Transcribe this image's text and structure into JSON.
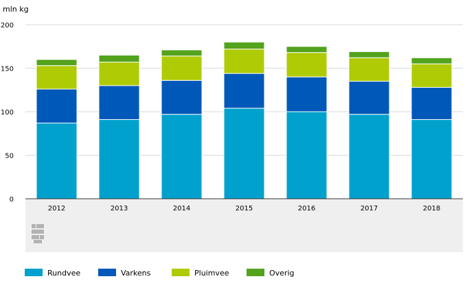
{
  "chart_data": {
    "type": "bar",
    "stacked": true,
    "title": "",
    "ylabel": "mln kg",
    "xlabel": "",
    "ylim": [
      0,
      200
    ],
    "yticks": [
      0,
      50,
      100,
      150,
      200
    ],
    "categories": [
      "2012",
      "2013",
      "2014",
      "2015",
      "2016",
      "2017",
      "2018"
    ],
    "series": [
      {
        "name": "Rundvee",
        "color": "#00a1cd",
        "values": [
          87,
          91,
          97,
          104,
          100,
          97,
          91
        ]
      },
      {
        "name": "Varkens",
        "color": "#0058b8",
        "values": [
          39,
          39,
          39,
          40,
          40,
          38,
          37
        ]
      },
      {
        "name": "Pluimvee",
        "color": "#afcb05",
        "values": [
          27,
          27,
          28,
          28,
          28,
          27,
          27
        ]
      },
      {
        "name": "Overig",
        "color": "#53a31d",
        "values": [
          7,
          8,
          7,
          8,
          7,
          7,
          7
        ]
      }
    ],
    "grid": true,
    "legend_position": "bottom"
  }
}
